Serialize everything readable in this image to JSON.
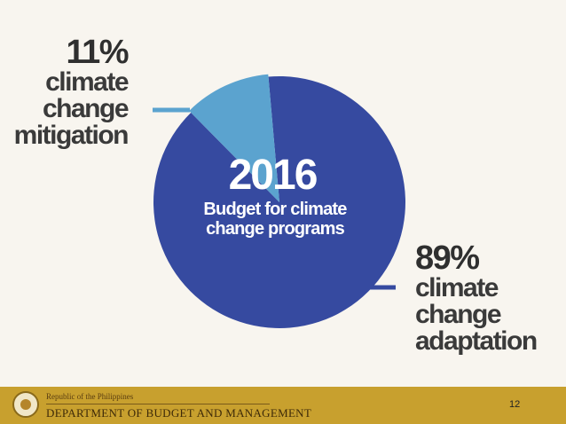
{
  "chart_data": {
    "type": "pie",
    "title": "2016",
    "subtitle": "Budget for climate change programs",
    "slices": [
      {
        "label": "climate change mitigation",
        "value": 11,
        "display": "11%",
        "color": "#5ba3cf"
      },
      {
        "label": "climate change adaptation",
        "value": 89,
        "display": "89%",
        "color": "#364aa0"
      }
    ]
  },
  "labels": {
    "mitigation": {
      "pct": "11%",
      "lines": [
        "climate",
        "change",
        "mitigation"
      ]
    },
    "adaptation": {
      "pct": "89%",
      "lines": [
        "climate",
        "change",
        "adaptation"
      ]
    }
  },
  "center": {
    "year": "2016",
    "line1": "Budget for climate",
    "line2": "change programs"
  },
  "footer": {
    "republic": "Republic of the Philippines",
    "department": "DEPARTMENT OF BUDGET AND MANAGEMENT",
    "page_number": "12"
  },
  "colors": {
    "background": "#f8f5ef",
    "footer": "#c8a02e",
    "leader": "#364aa0"
  }
}
